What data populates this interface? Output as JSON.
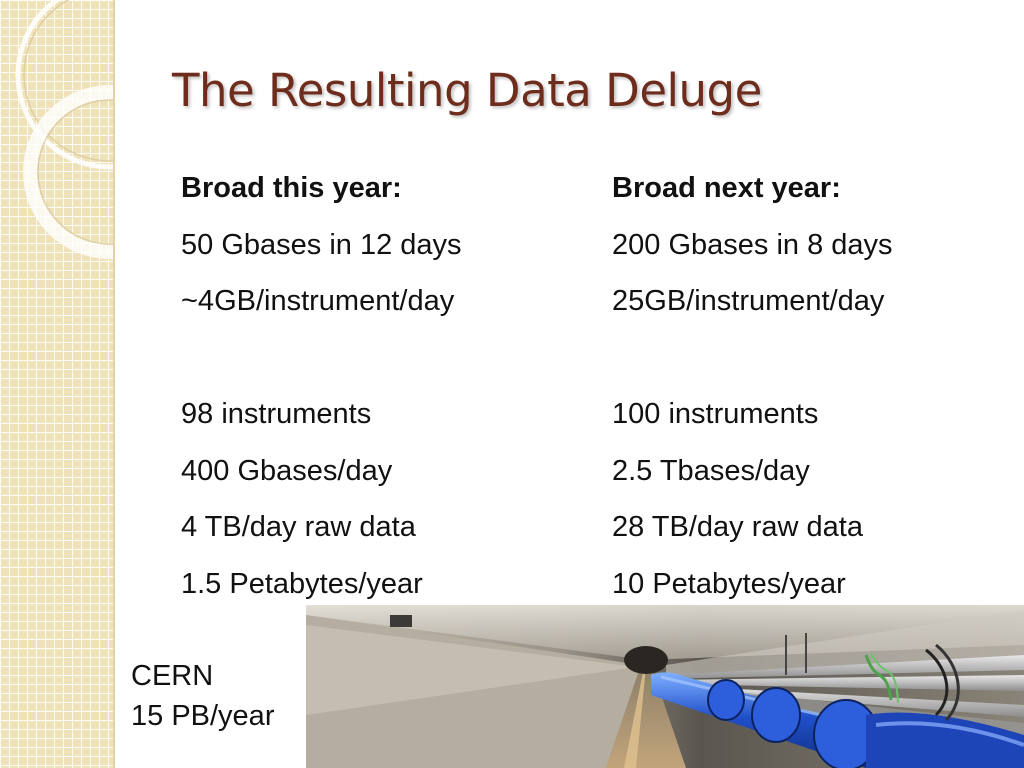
{
  "slide": {
    "title": "The Resulting Data Deluge"
  },
  "left_column": {
    "heading": "Broad this year:",
    "line1": "50 Gbases in 12 days",
    "line2": "~4GB/instrument/day",
    "line3": "98 instruments",
    "line4": "400 Gbases/day",
    "line5": "4 TB/day raw data",
    "line6": "1.5 Petabytes/year"
  },
  "right_column": {
    "heading": "Broad next year:",
    "line1": "200 Gbases in 8 days",
    "line2": "25GB/instrument/day",
    "line3": "100 instruments",
    "line4": "2.5 Tbases/day",
    "line5": "28 TB/day raw data",
    "line6": "10 Petabytes/year"
  },
  "cern": {
    "name": "CERN",
    "rate": "15 PB/year"
  },
  "colors": {
    "title": "#6e2d1c",
    "band": "#efe2b9",
    "magnet_blue": "#1f4fc9"
  }
}
